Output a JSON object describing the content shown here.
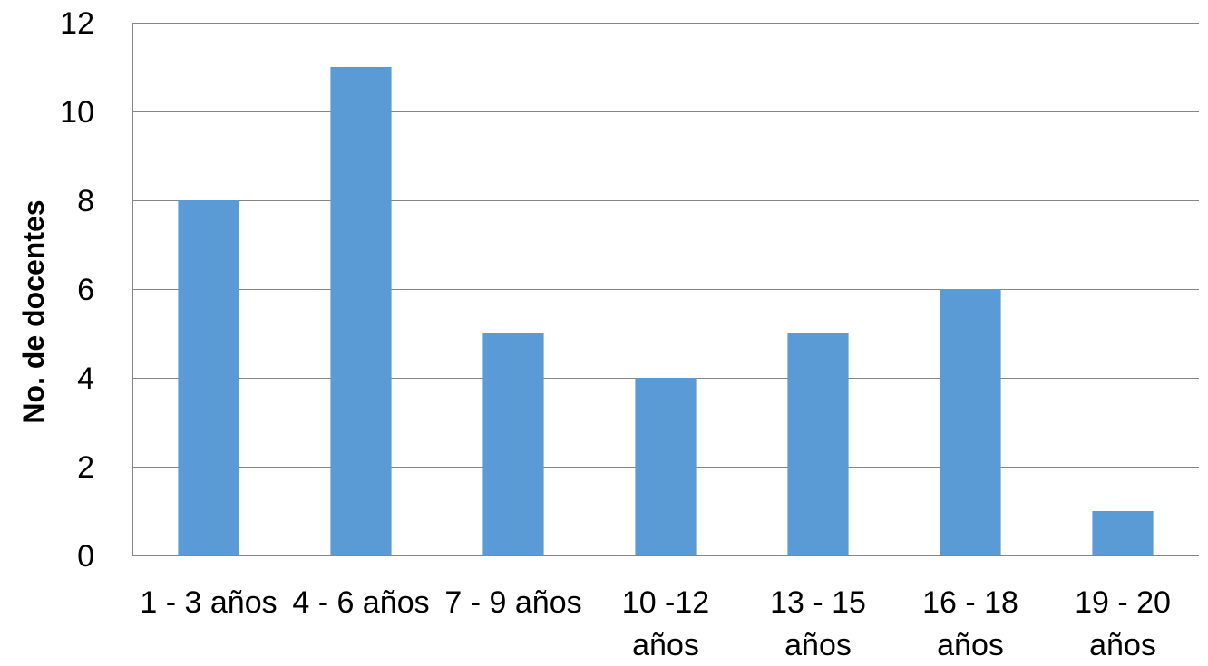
{
  "chart_data": {
    "type": "bar",
    "title": "",
    "xlabel": "",
    "ylabel": "No. de docentes",
    "categories": [
      [
        "1 - 3 años"
      ],
      [
        "4 - 6 años"
      ],
      [
        "7 - 9 años"
      ],
      [
        "10 -12",
        "años"
      ],
      [
        "13 - 15",
        "años"
      ],
      [
        "16 - 18",
        "años"
      ],
      [
        "19 - 20",
        "años"
      ]
    ],
    "values": [
      8,
      11,
      5,
      4,
      5,
      6,
      1
    ],
    "ylim": [
      0,
      12
    ],
    "yticks": [
      0,
      2,
      4,
      6,
      8,
      10,
      12
    ],
    "grid": true,
    "legend": "none",
    "colors": {
      "bar": "#5b9bd5",
      "grid": "#868686",
      "text": "#000000"
    }
  }
}
